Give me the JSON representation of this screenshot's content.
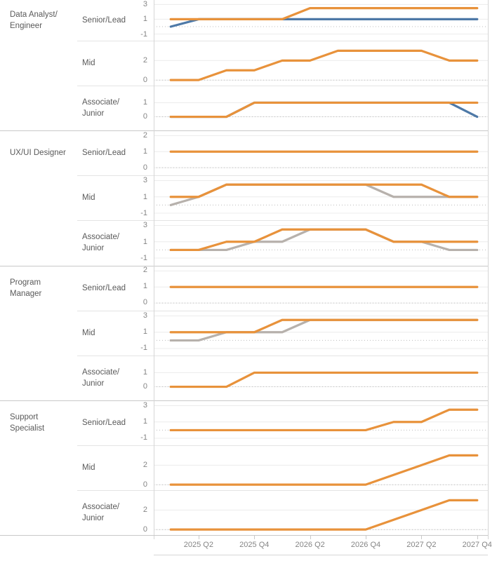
{
  "chart_data": {
    "type": "line",
    "title": "",
    "x_points": [
      "2025 Q1",
      "2025 Q2",
      "2025 Q3",
      "2025 Q4",
      "2026 Q1",
      "2026 Q2",
      "2026 Q3",
      "2026 Q4",
      "2027 Q1",
      "2027 Q2",
      "2027 Q3",
      "2027 Q4"
    ],
    "x_ticks": [
      {
        "label": "2025 Q2",
        "i": 1
      },
      {
        "label": "2025 Q4",
        "i": 3
      },
      {
        "label": "2026 Q2",
        "i": 5
      },
      {
        "label": "2026 Q4",
        "i": 7
      },
      {
        "label": "2027 Q2",
        "i": 9
      },
      {
        "label": "2027 Q4",
        "i": 11
      }
    ],
    "colors": {
      "orange": "#E8923B",
      "blue": "#4E79A7",
      "gray": "#B7B1AC"
    },
    "grid": {
      "tick_line": "#ececec",
      "zero_line": "#bdbdbd",
      "zero_style": "dotted"
    },
    "legend": "none",
    "groups": [
      {
        "role_lines": [
          "Data Analyst/",
          "Engineer"
        ],
        "panels": [
          {
            "level_lines": [
              "Senior/Lead"
            ],
            "yticks": [
              3,
              1,
              -1
            ],
            "ylim": [
              -1.9,
              3.6
            ],
            "series": [
              {
                "color": "blue",
                "values": [
                  0,
                  1,
                  1,
                  1,
                  1,
                  1,
                  1,
                  1,
                  1,
                  1,
                  1,
                  1
                ]
              },
              {
                "color": "orange",
                "values": [
                  1,
                  1,
                  1,
                  1,
                  1,
                  2.5,
                  2.5,
                  2.5,
                  2.5,
                  2.5,
                  2.5,
                  2.5
                ]
              }
            ]
          },
          {
            "level_lines": [
              "Mid"
            ],
            "yticks": [
              2,
              0
            ],
            "ylim": [
              -0.6,
              4.0
            ],
            "series": [
              {
                "color": "orange",
                "values": [
                  0,
                  0,
                  1,
                  1,
                  2,
                  2,
                  3,
                  3,
                  3,
                  3,
                  2,
                  2
                ]
              }
            ]
          },
          {
            "level_lines": [
              "Associate/",
              "Junior"
            ],
            "yticks": [
              1,
              0
            ],
            "ylim": [
              -1.0,
              2.2
            ],
            "series": [
              {
                "color": "blue",
                "values": [
                  0,
                  0,
                  0,
                  1,
                  1,
                  1,
                  1,
                  1,
                  1,
                  1,
                  1,
                  0
                ]
              },
              {
                "color": "orange",
                "values": [
                  0,
                  0,
                  0,
                  1,
                  1,
                  1,
                  1,
                  1,
                  1,
                  1,
                  1,
                  1
                ]
              }
            ]
          }
        ]
      },
      {
        "role_lines": [
          "UX/UI Designer"
        ],
        "panels": [
          {
            "level_lines": [
              "Senior/Lead"
            ],
            "yticks": [
              2,
              1,
              0
            ],
            "ylim": [
              -0.5,
              2.3
            ],
            "series": [
              {
                "color": "orange",
                "values": [
                  1,
                  1,
                  1,
                  1,
                  1,
                  1,
                  1,
                  1,
                  1,
                  1,
                  1,
                  1
                ]
              }
            ]
          },
          {
            "level_lines": [
              "Mid"
            ],
            "yticks": [
              3,
              1,
              -1
            ],
            "ylim": [
              -1.9,
              3.6
            ],
            "series": [
              {
                "color": "gray",
                "values": [
                  0,
                  1,
                  2.5,
                  2.5,
                  2.5,
                  2.5,
                  2.5,
                  2.5,
                  1,
                  1,
                  1,
                  1
                ]
              },
              {
                "color": "orange",
                "values": [
                  1,
                  1,
                  2.5,
                  2.5,
                  2.5,
                  2.5,
                  2.5,
                  2.5,
                  2.5,
                  2.5,
                  1,
                  1
                ]
              }
            ]
          },
          {
            "level_lines": [
              "Associate/",
              "Junior"
            ],
            "yticks": [
              3,
              1,
              -1
            ],
            "ylim": [
              -1.9,
              3.6
            ],
            "series": [
              {
                "color": "gray",
                "values": [
                  0,
                  0,
                  0,
                  1,
                  1,
                  2.5,
                  2.5,
                  2.5,
                  1,
                  1,
                  0,
                  0
                ]
              },
              {
                "color": "orange",
                "values": [
                  0,
                  0,
                  1,
                  1,
                  2.5,
                  2.5,
                  2.5,
                  2.5,
                  1,
                  1,
                  1,
                  1
                ]
              }
            ]
          }
        ]
      },
      {
        "role_lines": [
          "Program",
          "Manager"
        ],
        "panels": [
          {
            "level_lines": [
              "Senior/Lead"
            ],
            "yticks": [
              2,
              1,
              0
            ],
            "ylim": [
              -0.5,
              2.3
            ],
            "series": [
              {
                "color": "orange",
                "values": [
                  1,
                  1,
                  1,
                  1,
                  1,
                  1,
                  1,
                  1,
                  1,
                  1,
                  1,
                  1
                ]
              }
            ]
          },
          {
            "level_lines": [
              "Mid"
            ],
            "yticks": [
              3,
              1,
              -1
            ],
            "ylim": [
              -1.9,
              3.6
            ],
            "series": [
              {
                "color": "gray",
                "values": [
                  0,
                  0,
                  1,
                  1,
                  1,
                  2.5,
                  2.5,
                  2.5,
                  2.5,
                  2.5,
                  2.5,
                  2.5
                ]
              },
              {
                "color": "orange",
                "values": [
                  1,
                  1,
                  1,
                  1,
                  2.5,
                  2.5,
                  2.5,
                  2.5,
                  2.5,
                  2.5,
                  2.5,
                  2.5
                ]
              }
            ]
          },
          {
            "level_lines": [
              "Associate/",
              "Junior"
            ],
            "yticks": [
              1,
              0
            ],
            "ylim": [
              -1.0,
              2.2
            ],
            "series": [
              {
                "color": "orange",
                "values": [
                  0,
                  0,
                  0,
                  1,
                  1,
                  1,
                  1,
                  1,
                  1,
                  1,
                  1,
                  1
                ]
              }
            ]
          }
        ]
      },
      {
        "role_lines": [
          "Support",
          "Specialist"
        ],
        "panels": [
          {
            "level_lines": [
              "Senior/Lead"
            ],
            "yticks": [
              3,
              1,
              -1
            ],
            "ylim": [
              -1.9,
              3.6
            ],
            "series": [
              {
                "color": "orange",
                "values": [
                  0,
                  0,
                  0,
                  0,
                  0,
                  0,
                  0,
                  0,
                  1,
                  1,
                  2.5,
                  2.5
                ]
              }
            ]
          },
          {
            "level_lines": [
              "Mid"
            ],
            "yticks": [
              2,
              0
            ],
            "ylim": [
              -0.6,
              4.0
            ],
            "series": [
              {
                "color": "orange",
                "values": [
                  0,
                  0,
                  0,
                  0,
                  0,
                  0,
                  0,
                  0,
                  1,
                  2,
                  3,
                  3
                ]
              }
            ]
          },
          {
            "level_lines": [
              "Associate/",
              "Junior"
            ],
            "yticks": [
              2,
              0
            ],
            "ylim": [
              -0.6,
              4.0
            ],
            "series": [
              {
                "color": "orange",
                "values": [
                  0,
                  0,
                  0,
                  0,
                  0,
                  0,
                  0,
                  0,
                  1,
                  2,
                  3,
                  3
                ]
              }
            ]
          }
        ]
      }
    ]
  }
}
